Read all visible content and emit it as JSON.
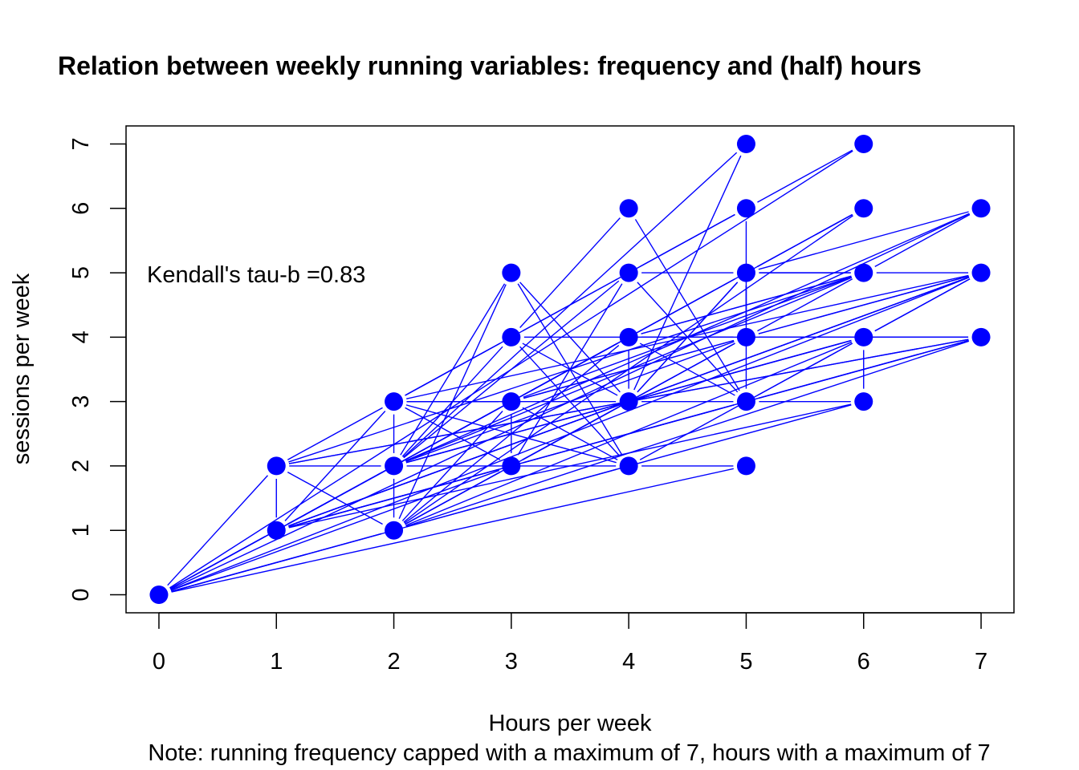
{
  "chart_data": {
    "type": "scatter",
    "title": "Relation between weekly running variables: frequency and (half) hours",
    "xlabel": "Hours per week",
    "ylabel": "sessions per week",
    "note": "Note: running frequency capped with a maximum of 7, hours with a maximum of 7",
    "annotation": "Kendall's tau-b =0.83",
    "xlim": [
      -0.28,
      7.28
    ],
    "ylim": [
      -0.28,
      7.28
    ],
    "x_ticks": [
      "0",
      "1",
      "2",
      "3",
      "4",
      "5",
      "6",
      "7"
    ],
    "y_ticks": [
      "0",
      "1",
      "2",
      "3",
      "4",
      "5",
      "6",
      "7"
    ],
    "color": "#0000FF",
    "points": [
      {
        "x": 0,
        "y": 0
      },
      {
        "x": 1,
        "y": 1
      },
      {
        "x": 1,
        "y": 2
      },
      {
        "x": 2,
        "y": 1
      },
      {
        "x": 2,
        "y": 2
      },
      {
        "x": 2,
        "y": 3
      },
      {
        "x": 3,
        "y": 2
      },
      {
        "x": 3,
        "y": 3
      },
      {
        "x": 3,
        "y": 4
      },
      {
        "x": 3,
        "y": 5
      },
      {
        "x": 4,
        "y": 2
      },
      {
        "x": 4,
        "y": 3
      },
      {
        "x": 4,
        "y": 4
      },
      {
        "x": 4,
        "y": 5
      },
      {
        "x": 4,
        "y": 6
      },
      {
        "x": 5,
        "y": 2
      },
      {
        "x": 5,
        "y": 3
      },
      {
        "x": 5,
        "y": 4
      },
      {
        "x": 5,
        "y": 5
      },
      {
        "x": 5,
        "y": 6
      },
      {
        "x": 5,
        "y": 7
      },
      {
        "x": 6,
        "y": 3
      },
      {
        "x": 6,
        "y": 4
      },
      {
        "x": 6,
        "y": 5
      },
      {
        "x": 6,
        "y": 6
      },
      {
        "x": 6,
        "y": 7
      },
      {
        "x": 7,
        "y": 4
      },
      {
        "x": 7,
        "y": 5
      },
      {
        "x": 7,
        "y": 6
      }
    ],
    "path": [
      [
        0,
        0
      ],
      [
        1,
        2
      ],
      [
        2,
        3
      ],
      [
        3,
        4
      ],
      [
        4,
        5
      ],
      [
        5,
        6
      ],
      [
        6,
        7
      ],
      [
        0,
        0
      ],
      [
        1,
        1
      ],
      [
        2,
        2
      ],
      [
        3,
        3
      ],
      [
        4,
        4
      ],
      [
        5,
        5
      ],
      [
        6,
        6
      ],
      [
        0,
        0
      ],
      [
        2,
        1
      ],
      [
        3,
        2
      ],
      [
        4,
        3
      ],
      [
        5,
        4
      ],
      [
        6,
        5
      ],
      [
        7,
        6
      ],
      [
        0,
        0
      ],
      [
        2,
        2
      ],
      [
        4,
        2
      ],
      [
        5,
        2
      ],
      [
        0,
        0
      ],
      [
        3,
        2
      ],
      [
        5,
        3
      ],
      [
        6,
        3
      ],
      [
        0,
        0
      ],
      [
        2,
        1
      ],
      [
        4,
        2
      ],
      [
        6,
        4
      ],
      [
        7,
        5
      ],
      [
        0,
        0
      ],
      [
        1,
        1
      ],
      [
        3,
        2
      ],
      [
        5,
        3
      ],
      [
        7,
        4
      ],
      [
        1,
        2
      ],
      [
        1,
        1
      ],
      [
        2,
        2
      ],
      [
        3,
        4
      ],
      [
        4,
        6
      ],
      [
        5,
        3
      ],
      [
        6,
        4
      ],
      [
        7,
        4
      ],
      [
        1,
        2
      ],
      [
        2,
        1
      ],
      [
        3,
        5
      ],
      [
        4,
        3
      ],
      [
        5,
        5
      ],
      [
        5,
        4
      ],
      [
        6,
        4
      ],
      [
        6,
        3
      ],
      [
        1,
        1
      ],
      [
        2,
        3
      ],
      [
        3,
        3
      ],
      [
        4,
        4
      ],
      [
        5,
        4
      ],
      [
        7,
        5
      ],
      [
        1,
        1
      ],
      [
        3,
        2
      ],
      [
        4,
        3
      ],
      [
        5,
        5
      ],
      [
        6,
        5
      ],
      [
        1,
        2
      ],
      [
        2,
        2
      ],
      [
        4,
        3
      ],
      [
        6,
        4
      ],
      [
        7,
        5
      ],
      [
        1,
        1
      ],
      [
        3,
        3
      ],
      [
        5,
        4
      ],
      [
        7,
        4
      ],
      [
        2,
        1
      ],
      [
        3,
        3
      ],
      [
        4,
        2
      ],
      [
        3,
        4
      ],
      [
        4,
        3
      ],
      [
        5,
        7
      ],
      [
        2,
        2
      ],
      [
        3,
        3
      ],
      [
        5,
        4
      ],
      [
        7,
        5
      ],
      [
        2,
        3
      ],
      [
        3,
        3
      ],
      [
        5,
        5
      ],
      [
        7,
        6
      ],
      [
        2,
        2
      ],
      [
        3,
        5
      ],
      [
        4,
        2
      ],
      [
        2,
        3
      ],
      [
        3,
        2
      ],
      [
        2,
        1
      ],
      [
        4,
        4
      ],
      [
        6,
        5
      ],
      [
        2,
        2
      ],
      [
        4,
        5
      ],
      [
        5,
        3
      ],
      [
        5,
        6
      ],
      [
        2,
        3
      ],
      [
        4,
        3
      ],
      [
        6,
        4
      ],
      [
        2,
        2
      ],
      [
        2,
        3
      ],
      [
        3,
        4
      ],
      [
        5,
        4
      ],
      [
        3,
        2
      ],
      [
        4,
        5
      ],
      [
        5,
        5
      ],
      [
        6,
        5
      ],
      [
        3,
        3
      ],
      [
        4,
        4
      ],
      [
        5,
        4
      ],
      [
        5,
        5
      ],
      [
        6,
        6
      ],
      [
        2,
        1
      ],
      [
        2,
        2
      ],
      [
        4,
        3
      ],
      [
        4,
        4
      ],
      [
        5,
        3
      ],
      [
        1,
        1
      ],
      [
        4,
        4
      ],
      [
        6,
        5
      ],
      [
        7,
        5
      ],
      [
        1,
        1
      ],
      [
        3,
        3
      ],
      [
        3,
        2
      ],
      [
        5,
        4
      ],
      [
        2,
        2
      ],
      [
        4,
        4
      ],
      [
        6,
        4
      ],
      [
        2,
        1
      ],
      [
        5,
        4
      ],
      [
        7,
        4
      ],
      [
        1,
        1
      ],
      [
        4,
        3
      ],
      [
        5,
        3
      ],
      [
        7,
        4
      ]
    ]
  }
}
